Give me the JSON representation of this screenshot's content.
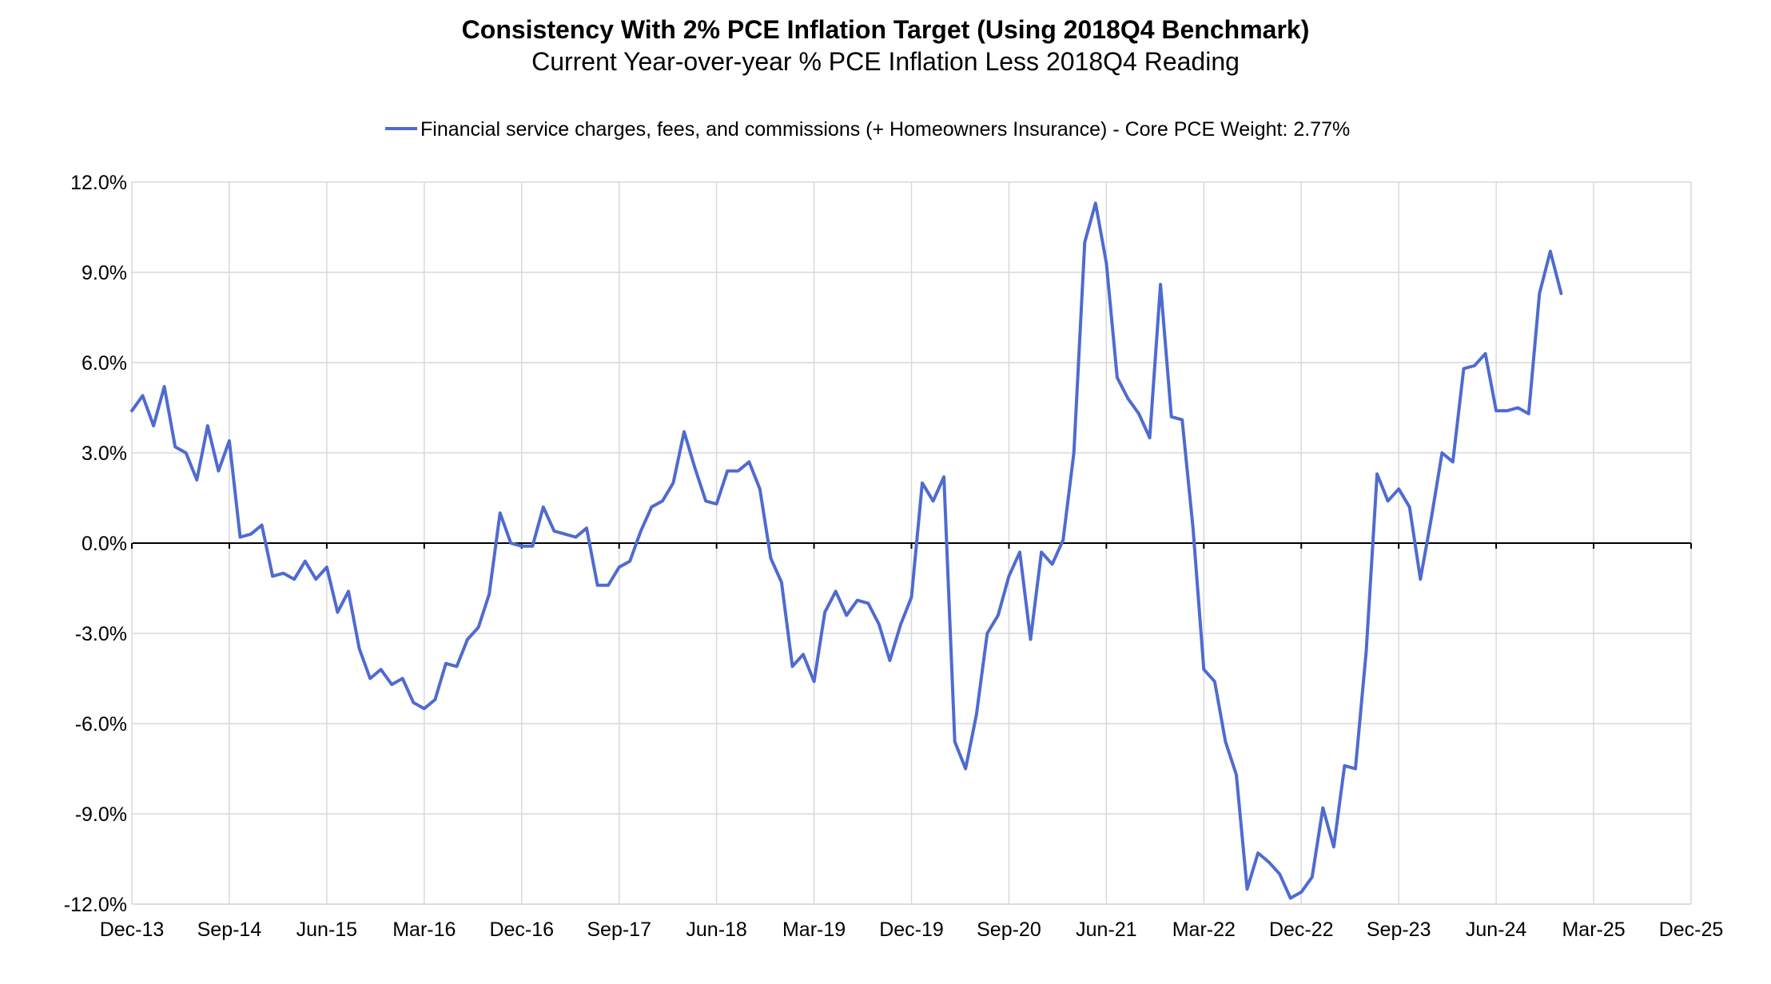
{
  "chart_data": {
    "type": "line",
    "title": "Consistency With 2% PCE Inflation Target (Using 2018Q4 Benchmark)",
    "subtitle": "Current Year-over-year % PCE Inflation Less 2018Q4 Reading",
    "xlabel": "",
    "ylabel": "",
    "legend_position": "top-center",
    "grid": true,
    "ylim": [
      -12,
      12
    ],
    "y_ticks": [
      -12,
      -9,
      -6,
      -3,
      0,
      3,
      6,
      9,
      12
    ],
    "y_tick_labels": [
      "-12.0%",
      "-9.0%",
      "-6.0%",
      "-3.0%",
      "0.0%",
      "3.0%",
      "6.0%",
      "9.0%",
      "12.0%"
    ],
    "x_tick_labels": [
      "Dec-13",
      "Sep-14",
      "Jun-15",
      "Mar-16",
      "Dec-16",
      "Sep-17",
      "Jun-18",
      "Mar-19",
      "Dec-19",
      "Sep-20",
      "Jun-21",
      "Mar-22",
      "Dec-22",
      "Sep-23",
      "Jun-24",
      "Mar-25",
      "Dec-25"
    ],
    "x_tick_interval_months": 9,
    "start_month": "Dec-13",
    "series": [
      {
        "name": "Financial service charges, fees, and commissions (+ Homeowners Insurance) - Core PCE Weight: 2.77%",
        "color": "#4f6bd0",
        "values": [
          4.4,
          4.9,
          3.9,
          5.2,
          3.2,
          3.0,
          2.1,
          3.9,
          2.4,
          3.4,
          0.2,
          0.3,
          0.6,
          -1.1,
          -1.0,
          -1.2,
          -0.6,
          -1.2,
          -0.8,
          -2.3,
          -1.6,
          -3.5,
          -4.5,
          -4.2,
          -4.7,
          -4.5,
          -5.3,
          -5.5,
          -5.2,
          -4.0,
          -4.1,
          -3.2,
          -2.8,
          -1.7,
          1.0,
          0.0,
          -0.1,
          -0.1,
          1.2,
          0.4,
          0.3,
          0.2,
          0.5,
          -1.4,
          -1.4,
          -0.8,
          -0.6,
          0.4,
          1.2,
          1.4,
          2.0,
          3.7,
          2.5,
          1.4,
          1.3,
          2.4,
          2.4,
          2.7,
          1.8,
          -0.5,
          -1.3,
          -4.1,
          -3.7,
          -4.6,
          -2.3,
          -1.6,
          -2.4,
          -1.9,
          -2.0,
          -2.7,
          -3.9,
          -2.7,
          -1.8,
          2.0,
          1.4,
          2.2,
          -6.6,
          -7.5,
          -5.7,
          -3.0,
          -2.4,
          -1.1,
          -0.3,
          -3.2,
          -0.3,
          -0.7,
          0.1,
          3.0,
          10.0,
          11.3,
          9.3,
          5.5,
          4.8,
          4.3,
          3.5,
          8.6,
          4.2,
          4.1,
          0.5,
          -4.2,
          -4.6,
          -6.6,
          -7.7,
          -11.5,
          -10.3,
          -10.6,
          -11.0,
          -11.8,
          -11.6,
          -11.1,
          -8.8,
          -10.1,
          -7.4,
          -7.5,
          -3.6,
          2.3,
          1.4,
          1.8,
          1.2,
          -1.2,
          0.8,
          3.0,
          2.7,
          5.8,
          5.9,
          6.3,
          4.4,
          4.4,
          4.5,
          4.3,
          8.3,
          9.7,
          8.3
        ]
      }
    ]
  }
}
